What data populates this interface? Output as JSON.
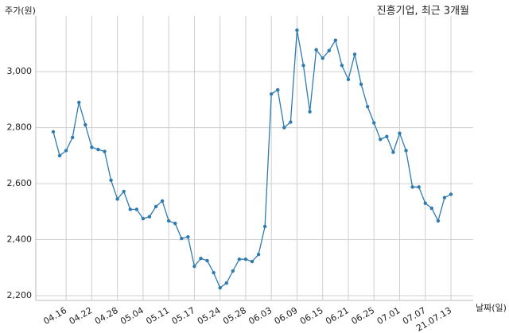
{
  "chart_data": {
    "type": "line",
    "title": "진흥기업, 최근 3개월",
    "y_label": "주가(원)",
    "x_label": "날짜(일)",
    "categories": [
      null,
      null,
      "04.16",
      null,
      null,
      null,
      "04.22",
      null,
      null,
      null,
      "04.28",
      null,
      null,
      null,
      "05.04",
      null,
      null,
      null,
      "05.11",
      null,
      null,
      null,
      "05.17",
      null,
      null,
      null,
      "05.24",
      null,
      null,
      null,
      "05.28",
      null,
      null,
      null,
      "06.03",
      null,
      null,
      null,
      "06.09",
      null,
      null,
      null,
      "06.15",
      null,
      null,
      null,
      "06.21",
      null,
      null,
      null,
      "06.25",
      null,
      null,
      null,
      "07.01",
      null,
      null,
      null,
      "07.07",
      null,
      null,
      null,
      "21.07.13"
    ],
    "series": [
      {
        "name": "진흥기업",
        "color": "#2f7bb0",
        "values": [
          2785,
          2700,
          2718,
          2765,
          2890,
          2810,
          2730,
          2722,
          2715,
          2612,
          2545,
          2572,
          2508,
          2508,
          2475,
          2482,
          2518,
          2538,
          2467,
          2458,
          2404,
          2410,
          2305,
          2333,
          2325,
          2282,
          2228,
          2245,
          2288,
          2330,
          2330,
          2322,
          2347,
          2447,
          2920,
          2935,
          2800,
          2820,
          3148,
          3022,
          2857,
          3078,
          3048,
          3075,
          3112,
          3022,
          2972,
          3062,
          2955,
          2875,
          2817,
          2758,
          2768,
          2712,
          2780,
          2718,
          2588,
          2588,
          2530,
          2512,
          2467,
          2550,
          2562
        ]
      }
    ],
    "ylim": [
      2183,
      3199
    ],
    "yticks": [
      {
        "value": 2200,
        "label": "2,200"
      },
      {
        "value": 2400,
        "label": "2,400"
      },
      {
        "value": 2600,
        "label": "2,600"
      },
      {
        "value": 2800,
        "label": "2,800"
      },
      {
        "value": 3000,
        "label": "3,000"
      }
    ],
    "grid": true
  }
}
